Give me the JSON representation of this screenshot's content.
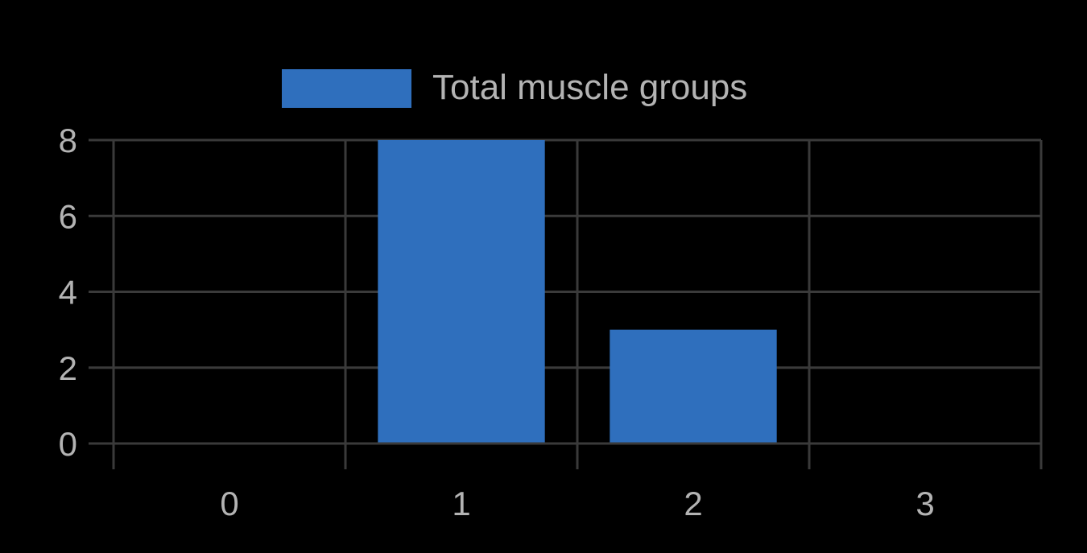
{
  "chart_data": {
    "type": "bar",
    "categories": [
      "0",
      "1",
      "2",
      "3"
    ],
    "series": [
      {
        "name": "Total muscle groups",
        "values": [
          0,
          8,
          3,
          0
        ],
        "color": "#2f6fbd"
      }
    ],
    "ylim": [
      0,
      8
    ],
    "yticks": [
      "0",
      "2",
      "4",
      "6",
      "8"
    ],
    "legend_position": "top-center",
    "grid": true,
    "colors": {
      "background": "#000000",
      "grid": "#3a3a3a",
      "text": "#b3b3b3"
    }
  }
}
